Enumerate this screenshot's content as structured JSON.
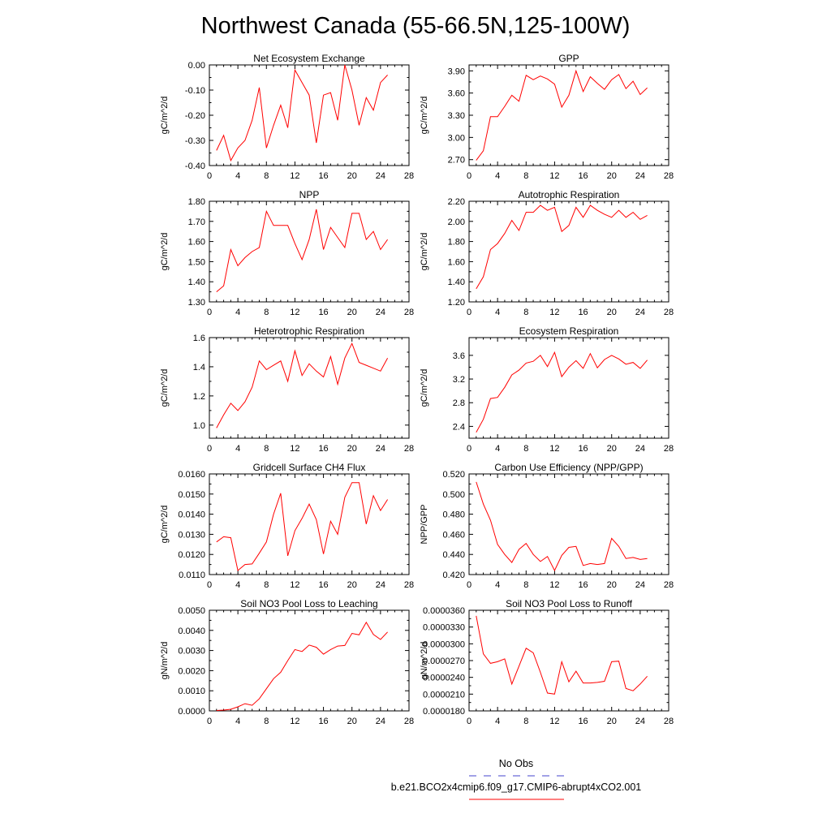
{
  "figure": {
    "title": "Northwest Canada (55-66.5N,125-100W)",
    "series_color": "#ff0000",
    "obs_color": "#4444cc"
  },
  "legend": {
    "obs_label": "No Obs",
    "model_label": "b.e21.BCO2x4cmip6.f09_g17.CMIP6-abrupt4xCO2.001"
  },
  "chart_data": [
    {
      "type": "line",
      "title": "Net Ecosystem Exchange",
      "ylabel": "gC/m^2/d",
      "xlim": [
        0,
        28
      ],
      "xticks": [
        0,
        4,
        8,
        12,
        16,
        20,
        24,
        28
      ],
      "ylim": [
        -0.4,
        0.0
      ],
      "yticks": [
        -0.4,
        -0.3,
        -0.2,
        -0.1,
        0.0
      ],
      "yticklabels": [
        "-0.40",
        "-0.30",
        "-0.20",
        "-0.10",
        "0.00"
      ],
      "x": [
        1,
        2,
        3,
        4,
        5,
        6,
        7,
        8,
        9,
        10,
        11,
        12,
        13,
        14,
        15,
        16,
        17,
        18,
        19,
        20,
        21,
        22,
        23,
        24,
        25
      ],
      "y": [
        -0.34,
        -0.28,
        -0.38,
        -0.33,
        -0.3,
        -0.22,
        -0.09,
        -0.33,
        -0.24,
        -0.16,
        -0.25,
        -0.02,
        -0.07,
        -0.12,
        -0.31,
        -0.12,
        -0.11,
        -0.22,
        0.0,
        -0.1,
        -0.24,
        -0.13,
        -0.18,
        -0.07,
        -0.04
      ]
    },
    {
      "type": "line",
      "title": "GPP",
      "ylabel": "gC/m^2/d",
      "xlim": [
        0,
        28
      ],
      "xticks": [
        0,
        4,
        8,
        12,
        16,
        20,
        24,
        28
      ],
      "ylim": [
        2.62,
        3.98
      ],
      "yticks": [
        2.7,
        3.0,
        3.3,
        3.6,
        3.9
      ],
      "yticklabels": [
        "2.70",
        "3.00",
        "3.30",
        "3.60",
        "3.90"
      ],
      "x": [
        1,
        2,
        3,
        4,
        5,
        6,
        7,
        8,
        9,
        10,
        11,
        12,
        13,
        14,
        15,
        16,
        17,
        18,
        19,
        20,
        21,
        22,
        23,
        24,
        25
      ],
      "y": [
        2.69,
        2.82,
        3.28,
        3.28,
        3.42,
        3.57,
        3.49,
        3.84,
        3.78,
        3.83,
        3.79,
        3.72,
        3.41,
        3.57,
        3.9,
        3.62,
        3.82,
        3.73,
        3.65,
        3.78,
        3.85,
        3.66,
        3.76,
        3.58,
        3.67
      ]
    },
    {
      "type": "line",
      "title": "NPP",
      "ylabel": "gC/m^2/d",
      "xlim": [
        0,
        28
      ],
      "xticks": [
        0,
        4,
        8,
        12,
        16,
        20,
        24,
        28
      ],
      "ylim": [
        1.3,
        1.8
      ],
      "yticks": [
        1.3,
        1.4,
        1.5,
        1.6,
        1.7,
        1.8
      ],
      "yticklabels": [
        "1.30",
        "1.40",
        "1.50",
        "1.60",
        "1.70",
        "1.80"
      ],
      "x": [
        1,
        2,
        3,
        4,
        5,
        6,
        7,
        8,
        9,
        10,
        11,
        12,
        13,
        14,
        15,
        16,
        17,
        18,
        19,
        20,
        21,
        22,
        23,
        24,
        25
      ],
      "y": [
        1.35,
        1.38,
        1.56,
        1.48,
        1.52,
        1.55,
        1.57,
        1.75,
        1.68,
        1.68,
        1.68,
        1.59,
        1.51,
        1.61,
        1.76,
        1.56,
        1.67,
        1.62,
        1.57,
        1.74,
        1.74,
        1.61,
        1.65,
        1.56,
        1.61
      ]
    },
    {
      "type": "line",
      "title": "Autotrophic Respiration",
      "ylabel": "gC/m^2/d",
      "xlim": [
        0,
        28
      ],
      "xticks": [
        0,
        4,
        8,
        12,
        16,
        20,
        24,
        28
      ],
      "ylim": [
        1.2,
        2.2
      ],
      "yticks": [
        1.2,
        1.4,
        1.6,
        1.8,
        2.0,
        2.2
      ],
      "yticklabels": [
        "1.20",
        "1.40",
        "1.60",
        "1.80",
        "2.00",
        "2.20"
      ],
      "x": [
        1,
        2,
        3,
        4,
        5,
        6,
        7,
        8,
        9,
        10,
        11,
        12,
        13,
        14,
        15,
        16,
        17,
        18,
        19,
        20,
        21,
        22,
        23,
        24,
        25
      ],
      "y": [
        1.33,
        1.45,
        1.72,
        1.78,
        1.88,
        2.01,
        1.91,
        2.09,
        2.09,
        2.16,
        2.11,
        2.14,
        1.9,
        1.96,
        2.14,
        2.04,
        2.16,
        2.11,
        2.07,
        2.04,
        2.11,
        2.04,
        2.09,
        2.02,
        2.06
      ]
    },
    {
      "type": "line",
      "title": "Heterotrophic Respiration",
      "ylabel": "gC/m^2/d",
      "xlim": [
        0,
        28
      ],
      "xticks": [
        0,
        4,
        8,
        12,
        16,
        20,
        24,
        28
      ],
      "ylim": [
        0.91,
        1.6
      ],
      "yticks": [
        1.0,
        1.2,
        1.4,
        1.6
      ],
      "yticklabels": [
        "1.0",
        "1.2",
        "1.4",
        "1.6"
      ],
      "x": [
        1,
        2,
        3,
        4,
        5,
        6,
        7,
        8,
        9,
        10,
        11,
        12,
        13,
        14,
        15,
        16,
        17,
        18,
        19,
        20,
        21,
        22,
        23,
        24,
        25
      ],
      "y": [
        0.98,
        1.07,
        1.15,
        1.1,
        1.16,
        1.26,
        1.44,
        1.38,
        1.41,
        1.44,
        1.3,
        1.51,
        1.34,
        1.42,
        1.37,
        1.33,
        1.47,
        1.28,
        1.46,
        1.56,
        1.43,
        1.41,
        1.39,
        1.37,
        1.46
      ]
    },
    {
      "type": "line",
      "title": "Ecosystem Respiration",
      "ylabel": "gC/m^2/d",
      "xlim": [
        0,
        28
      ],
      "xticks": [
        0,
        4,
        8,
        12,
        16,
        20,
        24,
        28
      ],
      "ylim": [
        2.2,
        3.9
      ],
      "yticks": [
        2.4,
        2.8,
        3.2,
        3.6
      ],
      "yticklabels": [
        "2.4",
        "2.8",
        "3.2",
        "3.6"
      ],
      "x": [
        1,
        2,
        3,
        4,
        5,
        6,
        7,
        8,
        9,
        10,
        11,
        12,
        13,
        14,
        15,
        16,
        17,
        18,
        19,
        20,
        21,
        22,
        23,
        24,
        25
      ],
      "y": [
        2.3,
        2.52,
        2.87,
        2.89,
        3.06,
        3.27,
        3.35,
        3.47,
        3.5,
        3.6,
        3.41,
        3.65,
        3.24,
        3.4,
        3.51,
        3.38,
        3.63,
        3.39,
        3.53,
        3.6,
        3.54,
        3.45,
        3.48,
        3.38,
        3.52
      ]
    },
    {
      "type": "line",
      "title": "Gridcell Surface CH4 Flux",
      "ylabel": "gC/m^2/d",
      "xlim": [
        0,
        28
      ],
      "xticks": [
        0,
        4,
        8,
        12,
        16,
        20,
        24,
        28
      ],
      "ylim": [
        0.011,
        0.016
      ],
      "yticks": [
        0.011,
        0.012,
        0.013,
        0.014,
        0.015,
        0.016
      ],
      "yticklabels": [
        "0.0110",
        "0.0120",
        "0.0130",
        "0.0140",
        "0.0150",
        "0.0160"
      ],
      "x": [
        1,
        2,
        3,
        4,
        5,
        6,
        7,
        8,
        9,
        10,
        11,
        12,
        13,
        14,
        15,
        16,
        17,
        18,
        19,
        20,
        21,
        22,
        23,
        24,
        25
      ],
      "y": [
        0.01262,
        0.01288,
        0.01283,
        0.0112,
        0.0115,
        0.01153,
        0.01206,
        0.01262,
        0.014,
        0.01504,
        0.01193,
        0.01318,
        0.01379,
        0.0145,
        0.01373,
        0.01202,
        0.01365,
        0.013,
        0.01484,
        0.01557,
        0.01557,
        0.01351,
        0.01492,
        0.01418,
        0.01473
      ]
    },
    {
      "type": "line",
      "title": "Carbon Use Efficiency (NPP/GPP)",
      "ylabel": "NPP/GPP",
      "xlim": [
        0,
        28
      ],
      "xticks": [
        0,
        4,
        8,
        12,
        16,
        20,
        24,
        28
      ],
      "ylim": [
        0.42,
        0.52
      ],
      "yticks": [
        0.42,
        0.44,
        0.46,
        0.48,
        0.5,
        0.52
      ],
      "yticklabels": [
        "0.420",
        "0.440",
        "0.460",
        "0.480",
        "0.500",
        "0.520"
      ],
      "x": [
        1,
        2,
        3,
        4,
        5,
        6,
        7,
        8,
        9,
        10,
        11,
        12,
        13,
        14,
        15,
        16,
        17,
        18,
        19,
        20,
        21,
        22,
        23,
        24,
        25
      ],
      "y": [
        0.512,
        0.49,
        0.474,
        0.45,
        0.44,
        0.432,
        0.445,
        0.451,
        0.44,
        0.433,
        0.438,
        0.424,
        0.439,
        0.447,
        0.448,
        0.429,
        0.431,
        0.43,
        0.431,
        0.456,
        0.448,
        0.436,
        0.437,
        0.435,
        0.436
      ]
    },
    {
      "type": "line",
      "title": "Soil NO3 Pool Loss to Leaching",
      "ylabel": "gN/m^2/d",
      "xlim": [
        0,
        28
      ],
      "xticks": [
        0,
        4,
        8,
        12,
        16,
        20,
        24,
        28
      ],
      "ylim": [
        0.0,
        0.005
      ],
      "yticks": [
        0.0,
        0.001,
        0.002,
        0.003,
        0.004,
        0.005
      ],
      "yticklabels": [
        "0.0000",
        "0.0010",
        "0.0020",
        "0.0030",
        "0.0040",
        "0.0050"
      ],
      "x": [
        1,
        2,
        3,
        4,
        5,
        6,
        7,
        8,
        9,
        10,
        11,
        12,
        13,
        14,
        15,
        16,
        17,
        18,
        19,
        20,
        21,
        22,
        23,
        24,
        25
      ],
      "y": [
        2e-05,
        4e-05,
        8e-05,
        0.0002,
        0.00036,
        0.00028,
        0.0006,
        0.0011,
        0.0016,
        0.00192,
        0.0025,
        0.00305,
        0.00295,
        0.00327,
        0.00316,
        0.00282,
        0.00305,
        0.00322,
        0.00325,
        0.00385,
        0.00378,
        0.0044,
        0.0038,
        0.00355,
        0.00392
      ]
    },
    {
      "type": "line",
      "title": "Soil NO3 Pool Loss to Runoff",
      "ylabel": "gN/m^2/d",
      "xlim": [
        0,
        28
      ],
      "xticks": [
        0,
        4,
        8,
        12,
        16,
        20,
        24,
        28
      ],
      "ylim": [
        1.8e-05,
        3.6e-05
      ],
      "yticks": [
        1.8e-05,
        2.1e-05,
        2.4e-05,
        2.7e-05,
        3e-05,
        3.3e-05,
        3.6e-05
      ],
      "yticklabels": [
        "0.0000180",
        "0.0000210",
        "0.0000240",
        "0.0000270",
        "0.0000300",
        "0.0000330",
        "0.0000360"
      ],
      "x": [
        1,
        2,
        3,
        4,
        5,
        6,
        7,
        8,
        9,
        10,
        11,
        12,
        13,
        14,
        15,
        16,
        17,
        18,
        19,
        20,
        21,
        22,
        23,
        24,
        25
      ],
      "y": [
        3.5e-05,
        2.82e-05,
        2.65e-05,
        2.68e-05,
        2.73e-05,
        2.28e-05,
        2.6e-05,
        2.92e-05,
        2.84e-05,
        2.49e-05,
        2.12e-05,
        2.1e-05,
        2.68e-05,
        2.32e-05,
        2.51e-05,
        2.3e-05,
        2.3e-05,
        2.31e-05,
        2.33e-05,
        2.68e-05,
        2.69e-05,
        2.2e-05,
        2.16e-05,
        2.28e-05,
        2.42e-05
      ]
    }
  ]
}
